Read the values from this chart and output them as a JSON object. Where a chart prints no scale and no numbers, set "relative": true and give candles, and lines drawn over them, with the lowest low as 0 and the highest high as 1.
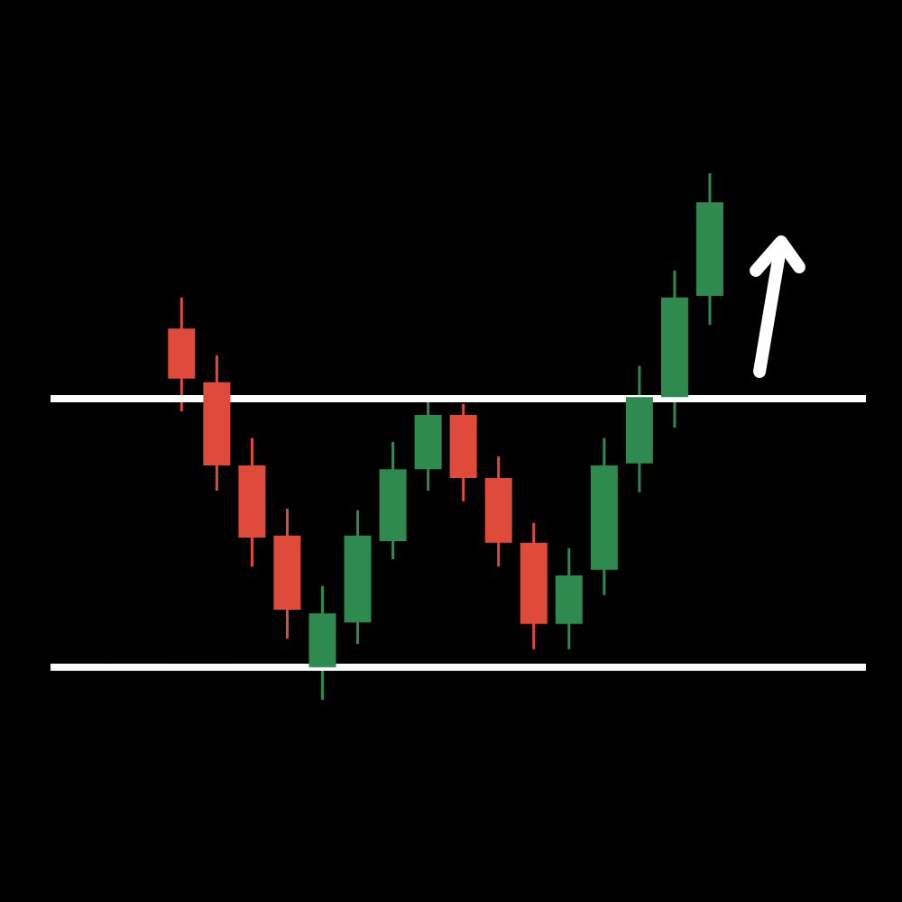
{
  "chart_data": {
    "type": "candlestick",
    "relative": true,
    "categories": [
      null,
      null,
      null,
      null,
      null,
      null,
      null,
      null,
      null,
      null,
      null,
      null,
      null,
      null,
      null,
      null
    ],
    "ohlc": [
      [
        0.705,
        0.764,
        0.548,
        0.61
      ],
      [
        0.603,
        0.654,
        0.397,
        0.445
      ],
      [
        0.445,
        0.497,
        0.253,
        0.308
      ],
      [
        0.312,
        0.363,
        0.116,
        0.171
      ],
      [
        0.062,
        0.216,
        0.0,
        0.164
      ],
      [
        0.147,
        0.36,
        0.106,
        0.312
      ],
      [
        0.301,
        0.49,
        0.267,
        0.438
      ],
      [
        0.438,
        0.568,
        0.397,
        0.541
      ],
      [
        0.541,
        0.562,
        0.377,
        0.421
      ],
      [
        0.421,
        0.462,
        0.253,
        0.298
      ],
      [
        0.298,
        0.336,
        0.096,
        0.144
      ],
      [
        0.144,
        0.288,
        0.096,
        0.236
      ],
      [
        0.247,
        0.497,
        0.199,
        0.445
      ],
      [
        0.449,
        0.634,
        0.394,
        0.575
      ],
      [
        0.575,
        0.815,
        0.517,
        0.764
      ],
      [
        0.767,
        1.0,
        0.712,
        0.945
      ]
    ],
    "colors": [
      "#e04a3a",
      "#e04a3a",
      "#e04a3a",
      "#e04a3a",
      "#2e8a4f",
      "#2e8a4f",
      "#2e8a4f",
      "#2e8a4f",
      "#e04a3a",
      "#e04a3a",
      "#e04a3a",
      "#2e8a4f",
      "#2e8a4f",
      "#2e8a4f",
      "#2e8a4f",
      "#2e8a4f"
    ],
    "ref_lines": [
      {
        "axis": "y",
        "value": 0.572,
        "color": "#ffffff"
      },
      {
        "axis": "y",
        "value": 0.062,
        "color": "#ffffff"
      }
    ]
  }
}
